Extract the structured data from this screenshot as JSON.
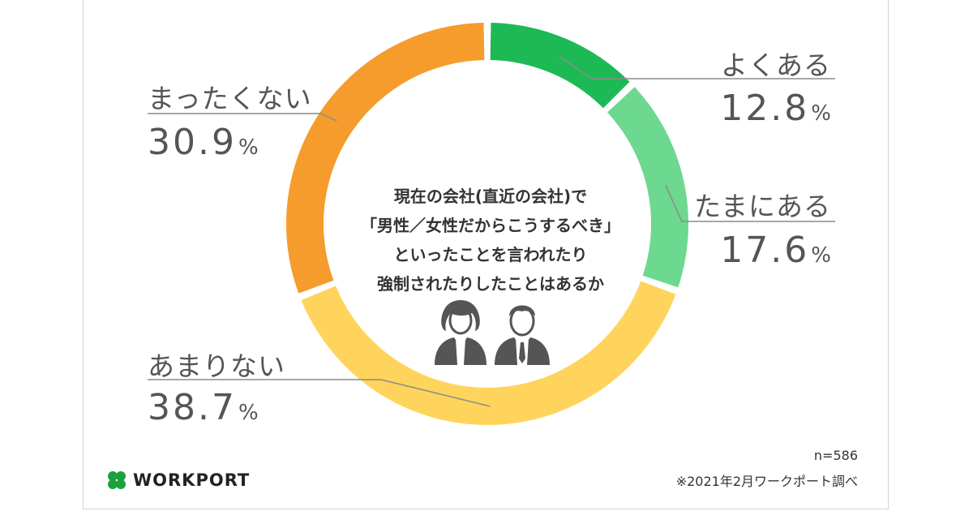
{
  "chart_data": {
    "type": "pie",
    "variant": "donut",
    "title": "現在の会社(直近の会社)で「男性／女性だからこうするべき」といったことを言われたり強制されたりしたことはあるか",
    "title_lines": [
      "現在の会社(直近の会社)で",
      "「男性／女性だからこうするべき」",
      "といったことを言われたり",
      "強制されたりしたことはあるか"
    ],
    "unit": "%",
    "categories": [
      "よくある",
      "たまにある",
      "あまりない",
      "まったくない"
    ],
    "values": [
      12.8,
      17.6,
      38.7,
      30.9
    ],
    "value_labels": [
      "12.8",
      "17.6",
      "38.7",
      "30.9"
    ],
    "colors": [
      "#1db954",
      "#6dd88f",
      "#ffd45c",
      "#f59c2c"
    ],
    "start": "12 o'clock",
    "direction": "clockwise"
  },
  "footer": {
    "sample_size": "n=586",
    "source": "※2021年2月ワークポート調べ"
  },
  "logo": {
    "text": "WORKPORT",
    "icon": "four-leaf-clover-icon",
    "color": "#1aa13e"
  },
  "illustration": {
    "icons": [
      "woman-silhouette-icon",
      "man-silhouette-icon"
    ],
    "color": "#555555"
  },
  "leader_color": "#8c8c8c"
}
